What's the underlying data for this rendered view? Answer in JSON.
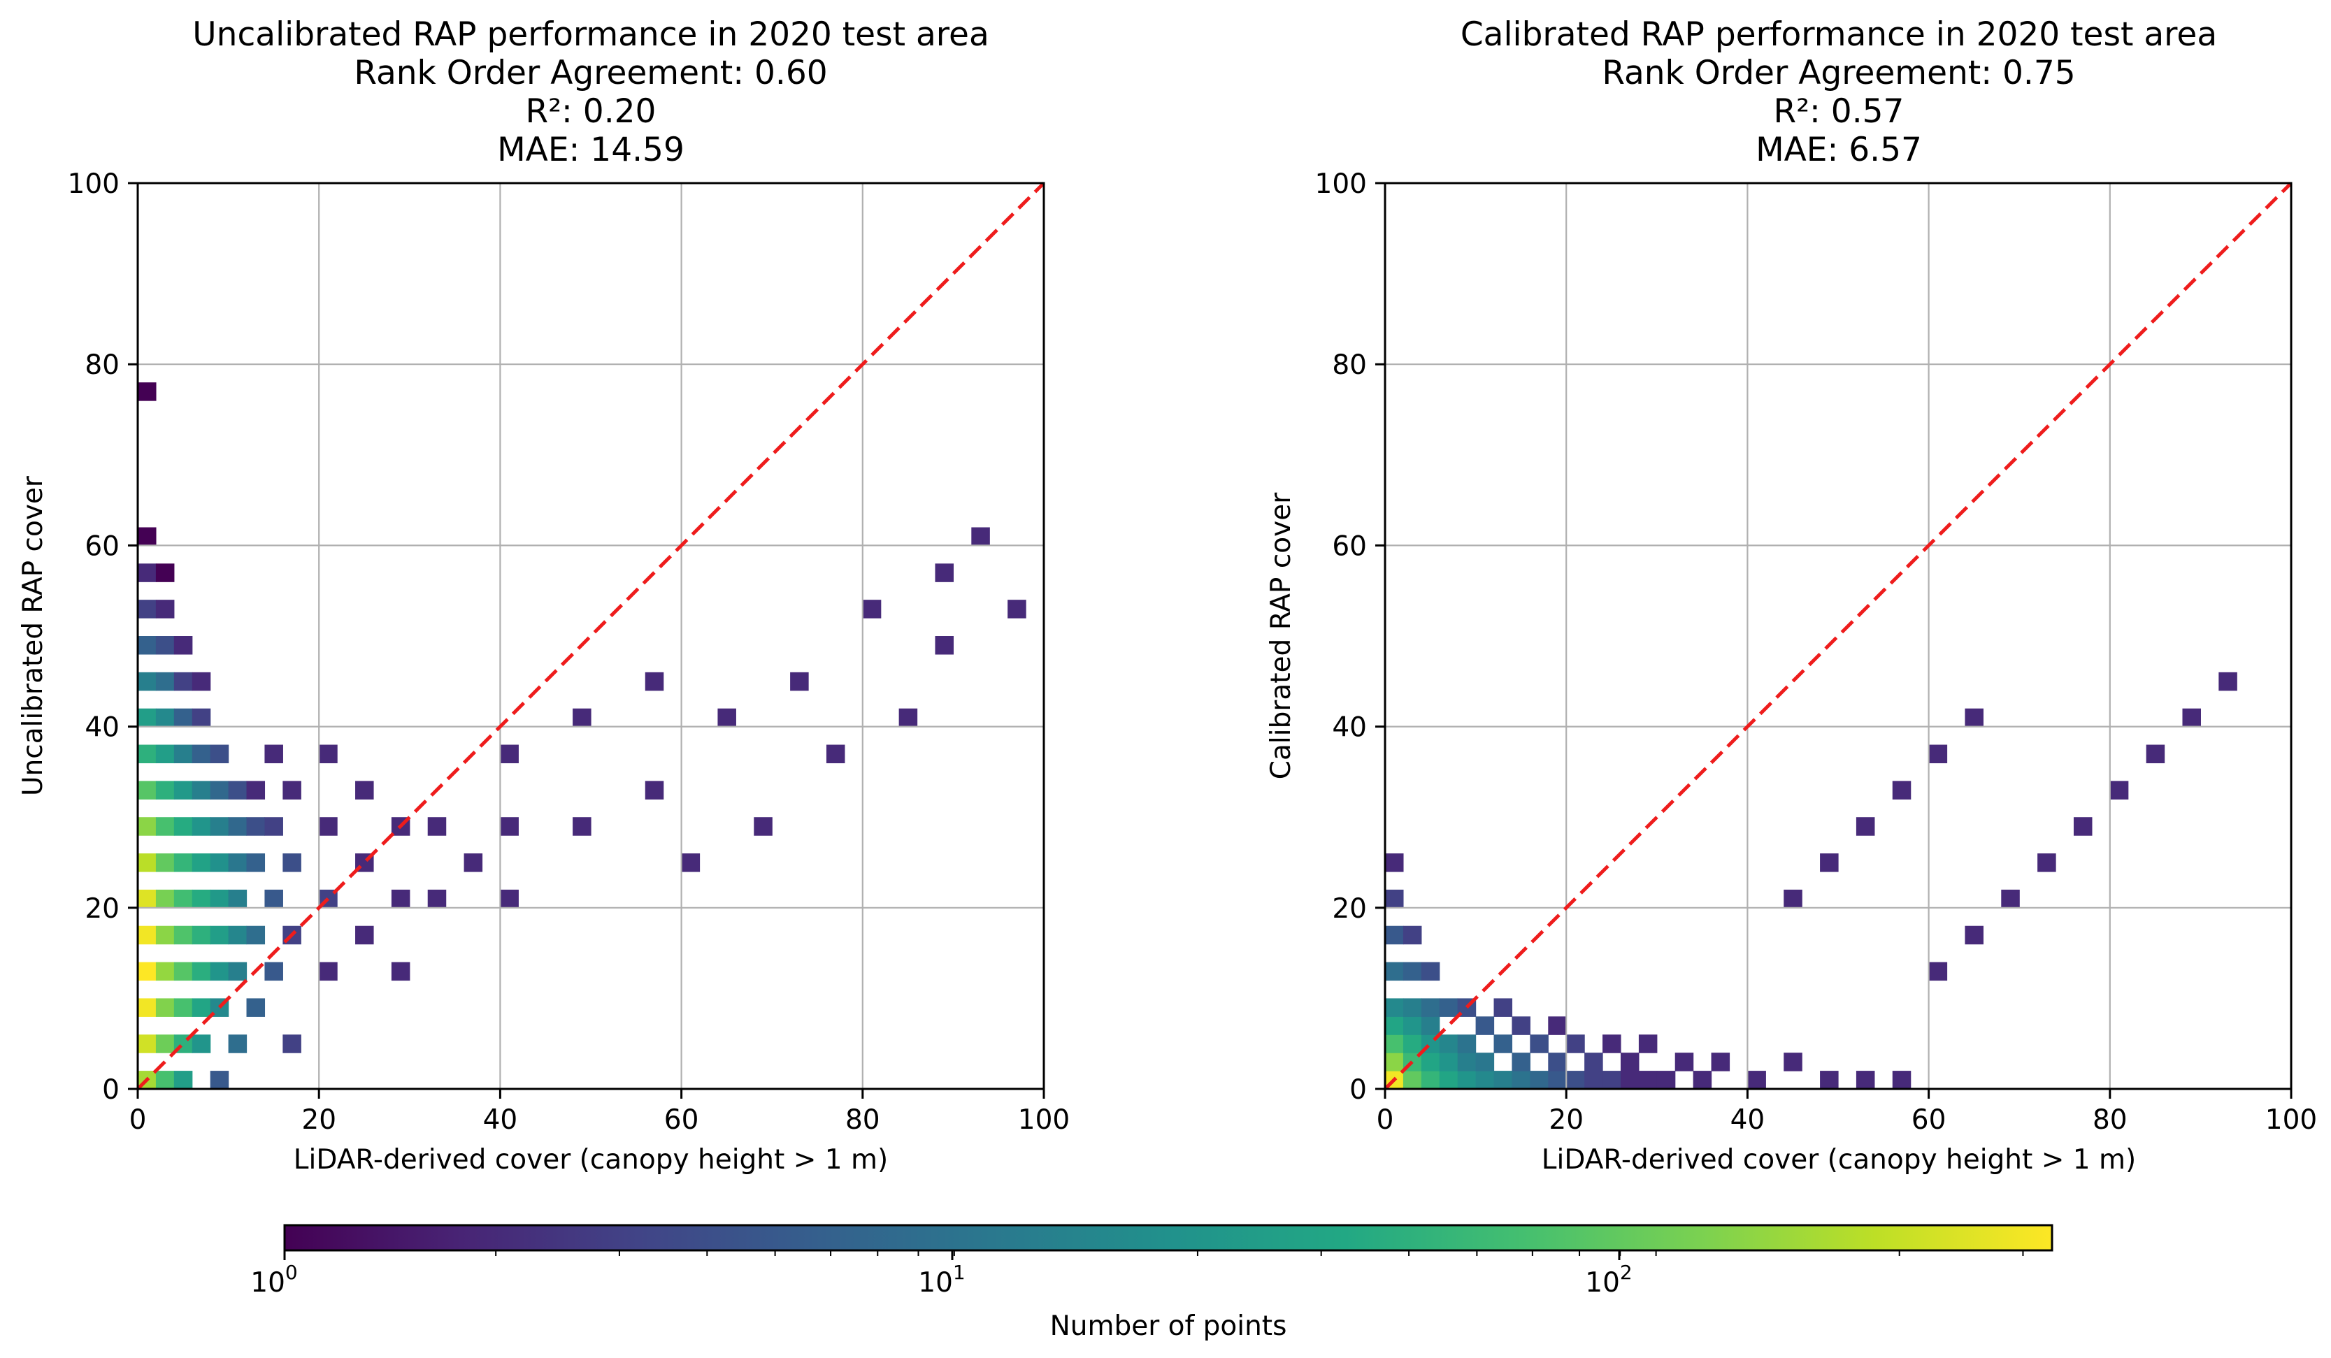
{
  "chart_data": [
    {
      "type": "heatmap",
      "title_lines": [
        "Uncalibrated RAP performance in 2020 test area",
        "Rank Order Agreement: 0.60",
        "R²: 0.20",
        "MAE: 14.59"
      ],
      "xlabel": "LiDAR-derived cover (canopy height > 1 m)",
      "ylabel": "Uncalibrated RAP cover",
      "xlim": [
        0,
        100
      ],
      "ylim": [
        0,
        100
      ],
      "xticks": [
        "0",
        "20",
        "40",
        "60",
        "80",
        "100"
      ],
      "yticks": [
        "0",
        "20",
        "40",
        "60",
        "80",
        "100"
      ],
      "grid": true,
      "bins": 50,
      "reference_line": {
        "from": [
          0,
          0
        ],
        "to": [
          100,
          100
        ],
        "style": "dashed",
        "color": "#ee1c1c"
      },
      "points_note": "2D histogram of point counts, log color scale",
      "cells": [
        [
          0,
          0,
          150
        ],
        [
          0,
          2,
          220
        ],
        [
          0,
          4,
          300
        ],
        [
          0,
          6,
          330
        ],
        [
          0,
          8,
          300
        ],
        [
          0,
          10,
          250
        ],
        [
          0,
          12,
          180
        ],
        [
          0,
          14,
          120
        ],
        [
          0,
          16,
          70
        ],
        [
          0,
          18,
          40
        ],
        [
          0,
          20,
          25
        ],
        [
          0,
          22,
          12
        ],
        [
          0,
          24,
          6
        ],
        [
          0,
          26,
          3
        ],
        [
          0,
          28,
          2
        ],
        [
          0,
          30,
          1
        ],
        [
          0,
          38,
          1
        ],
        [
          1,
          0,
          60
        ],
        [
          1,
          2,
          90
        ],
        [
          1,
          4,
          110
        ],
        [
          1,
          6,
          130
        ],
        [
          1,
          8,
          120
        ],
        [
          1,
          10,
          100
        ],
        [
          1,
          12,
          80
        ],
        [
          1,
          14,
          60
        ],
        [
          1,
          16,
          40
        ],
        [
          1,
          18,
          25
        ],
        [
          1,
          20,
          15
        ],
        [
          1,
          22,
          8
        ],
        [
          1,
          24,
          4
        ],
        [
          1,
          26,
          2
        ],
        [
          1,
          28,
          1
        ],
        [
          2,
          0,
          25
        ],
        [
          2,
          2,
          40
        ],
        [
          2,
          4,
          60
        ],
        [
          2,
          6,
          70
        ],
        [
          2,
          8,
          65
        ],
        [
          2,
          10,
          55
        ],
        [
          2,
          12,
          45
        ],
        [
          2,
          14,
          35
        ],
        [
          2,
          16,
          22
        ],
        [
          2,
          18,
          12
        ],
        [
          2,
          20,
          6
        ],
        [
          2,
          22,
          3
        ],
        [
          2,
          24,
          2
        ],
        [
          3,
          2,
          20
        ],
        [
          3,
          4,
          30
        ],
        [
          3,
          6,
          38
        ],
        [
          3,
          8,
          40
        ],
        [
          3,
          10,
          35
        ],
        [
          3,
          12,
          28
        ],
        [
          3,
          14,
          20
        ],
        [
          3,
          16,
          12
        ],
        [
          3,
          18,
          6
        ],
        [
          3,
          20,
          3
        ],
        [
          3,
          22,
          2
        ],
        [
          4,
          0,
          5
        ],
        [
          4,
          4,
          15
        ],
        [
          4,
          6,
          20
        ],
        [
          4,
          8,
          25
        ],
        [
          4,
          10,
          22
        ],
        [
          4,
          12,
          18
        ],
        [
          4,
          14,
          12
        ],
        [
          4,
          16,
          7
        ],
        [
          4,
          18,
          4
        ],
        [
          5,
          2,
          8
        ],
        [
          5,
          6,
          12
        ],
        [
          5,
          8,
          14
        ],
        [
          5,
          10,
          12
        ],
        [
          5,
          12,
          10
        ],
        [
          5,
          14,
          7
        ],
        [
          5,
          16,
          4
        ],
        [
          6,
          4,
          6
        ],
        [
          6,
          8,
          8
        ],
        [
          6,
          12,
          6
        ],
        [
          6,
          14,
          4
        ],
        [
          6,
          16,
          2
        ],
        [
          7,
          6,
          5
        ],
        [
          7,
          10,
          5
        ],
        [
          7,
          14,
          3
        ],
        [
          7,
          18,
          2
        ],
        [
          8,
          2,
          3
        ],
        [
          8,
          8,
          3
        ],
        [
          8,
          12,
          4
        ],
        [
          8,
          16,
          2
        ],
        [
          10,
          6,
          2
        ],
        [
          10,
          10,
          3
        ],
        [
          10,
          14,
          2
        ],
        [
          10,
          18,
          2
        ],
        [
          12,
          8,
          2
        ],
        [
          12,
          12,
          2
        ],
        [
          12,
          16,
          2
        ],
        [
          14,
          6,
          2
        ],
        [
          14,
          10,
          2
        ],
        [
          14,
          14,
          2
        ],
        [
          16,
          10,
          2
        ],
        [
          16,
          14,
          2
        ],
        [
          18,
          12,
          2
        ],
        [
          20,
          14,
          2
        ],
        [
          20,
          18,
          2
        ],
        [
          24,
          14,
          2
        ],
        [
          24,
          20,
          2
        ],
        [
          28,
          16,
          2
        ],
        [
          28,
          22,
          2
        ],
        [
          32,
          20,
          2
        ],
        [
          36,
          22,
          2
        ],
        [
          40,
          26,
          2
        ],
        [
          44,
          28,
          2
        ],
        [
          46,
          30,
          2
        ],
        [
          20,
          10,
          2
        ],
        [
          30,
          12,
          2
        ],
        [
          34,
          14,
          2
        ],
        [
          38,
          18,
          2
        ],
        [
          42,
          20,
          2
        ],
        [
          44,
          24,
          2
        ],
        [
          48,
          26,
          2
        ]
      ]
    },
    {
      "type": "heatmap",
      "title_lines": [
        "Calibrated RAP performance in 2020 test area",
        "Rank Order Agreement: 0.75",
        "R²: 0.57",
        "MAE: 6.57"
      ],
      "xlabel": "LiDAR-derived cover (canopy height > 1 m)",
      "ylabel": "Calibrated RAP cover",
      "xlim": [
        0,
        100
      ],
      "ylim": [
        0,
        100
      ],
      "xticks": [
        "0",
        "20",
        "40",
        "60",
        "80",
        "100"
      ],
      "yticks": [
        "0",
        "20",
        "40",
        "60",
        "80",
        "100"
      ],
      "grid": true,
      "bins": 50,
      "reference_line": {
        "from": [
          0,
          0
        ],
        "to": [
          100,
          100
        ],
        "style": "dashed",
        "color": "#ee1c1c"
      },
      "points_note": "2D histogram of point counts, log color scale",
      "cells": [
        [
          0,
          0,
          300
        ],
        [
          0,
          1,
          120
        ],
        [
          0,
          2,
          60
        ],
        [
          0,
          3,
          30
        ],
        [
          0,
          4,
          15
        ],
        [
          0,
          6,
          8
        ],
        [
          0,
          8,
          5
        ],
        [
          0,
          10,
          3
        ],
        [
          0,
          12,
          2
        ],
        [
          1,
          0,
          80
        ],
        [
          1,
          1,
          50
        ],
        [
          1,
          2,
          35
        ],
        [
          1,
          3,
          20
        ],
        [
          1,
          4,
          12
        ],
        [
          1,
          6,
          6
        ],
        [
          1,
          8,
          3
        ],
        [
          2,
          0,
          45
        ],
        [
          2,
          1,
          30
        ],
        [
          2,
          2,
          20
        ],
        [
          2,
          3,
          12
        ],
        [
          2,
          4,
          8
        ],
        [
          2,
          6,
          4
        ],
        [
          3,
          0,
          30
        ],
        [
          3,
          1,
          20
        ],
        [
          3,
          2,
          14
        ],
        [
          3,
          4,
          6
        ],
        [
          4,
          0,
          20
        ],
        [
          4,
          1,
          12
        ],
        [
          4,
          2,
          9
        ],
        [
          4,
          4,
          4
        ],
        [
          5,
          0,
          15
        ],
        [
          5,
          1,
          10
        ],
        [
          5,
          3,
          5
        ],
        [
          6,
          0,
          12
        ],
        [
          6,
          2,
          6
        ],
        [
          6,
          4,
          3
        ],
        [
          7,
          0,
          9
        ],
        [
          7,
          1,
          6
        ],
        [
          7,
          3,
          3
        ],
        [
          8,
          0,
          7
        ],
        [
          8,
          2,
          4
        ],
        [
          9,
          0,
          5
        ],
        [
          9,
          1,
          4
        ],
        [
          9,
          3,
          2
        ],
        [
          10,
          0,
          4
        ],
        [
          10,
          2,
          3
        ],
        [
          11,
          0,
          3
        ],
        [
          11,
          1,
          3
        ],
        [
          12,
          0,
          3
        ],
        [
          12,
          2,
          2
        ],
        [
          13,
          0,
          2
        ],
        [
          13,
          1,
          2
        ],
        [
          14,
          0,
          2
        ],
        [
          14,
          2,
          2
        ],
        [
          15,
          0,
          2
        ],
        [
          16,
          1,
          2
        ],
        [
          17,
          0,
          2
        ],
        [
          18,
          1,
          2
        ],
        [
          20,
          0,
          2
        ],
        [
          22,
          1,
          2
        ],
        [
          24,
          0,
          2
        ],
        [
          26,
          0,
          2
        ],
        [
          28,
          0,
          2
        ],
        [
          30,
          6,
          2
        ],
        [
          32,
          8,
          2
        ],
        [
          34,
          10,
          2
        ],
        [
          36,
          12,
          2
        ],
        [
          38,
          14,
          2
        ],
        [
          40,
          16,
          2
        ],
        [
          42,
          18,
          2
        ],
        [
          44,
          20,
          2
        ],
        [
          46,
          22,
          2
        ],
        [
          22,
          10,
          2
        ],
        [
          24,
          12,
          2
        ],
        [
          26,
          14,
          2
        ],
        [
          28,
          16,
          2
        ],
        [
          30,
          18,
          2
        ],
        [
          32,
          20,
          2
        ]
      ]
    }
  ],
  "colorbar": {
    "label": "Number of points",
    "scale": "log",
    "min": 1,
    "max": 330,
    "tick_labels": [
      {
        "base": "10",
        "exp": "0",
        "value": 1
      },
      {
        "base": "10",
        "exp": "1",
        "value": 10
      },
      {
        "base": "10",
        "exp": "2",
        "value": 100
      }
    ],
    "colormap": "viridis"
  },
  "colors": {
    "axis": "#000000",
    "grid": "#b0b0b0",
    "reference_line": "#ee1c1c"
  }
}
